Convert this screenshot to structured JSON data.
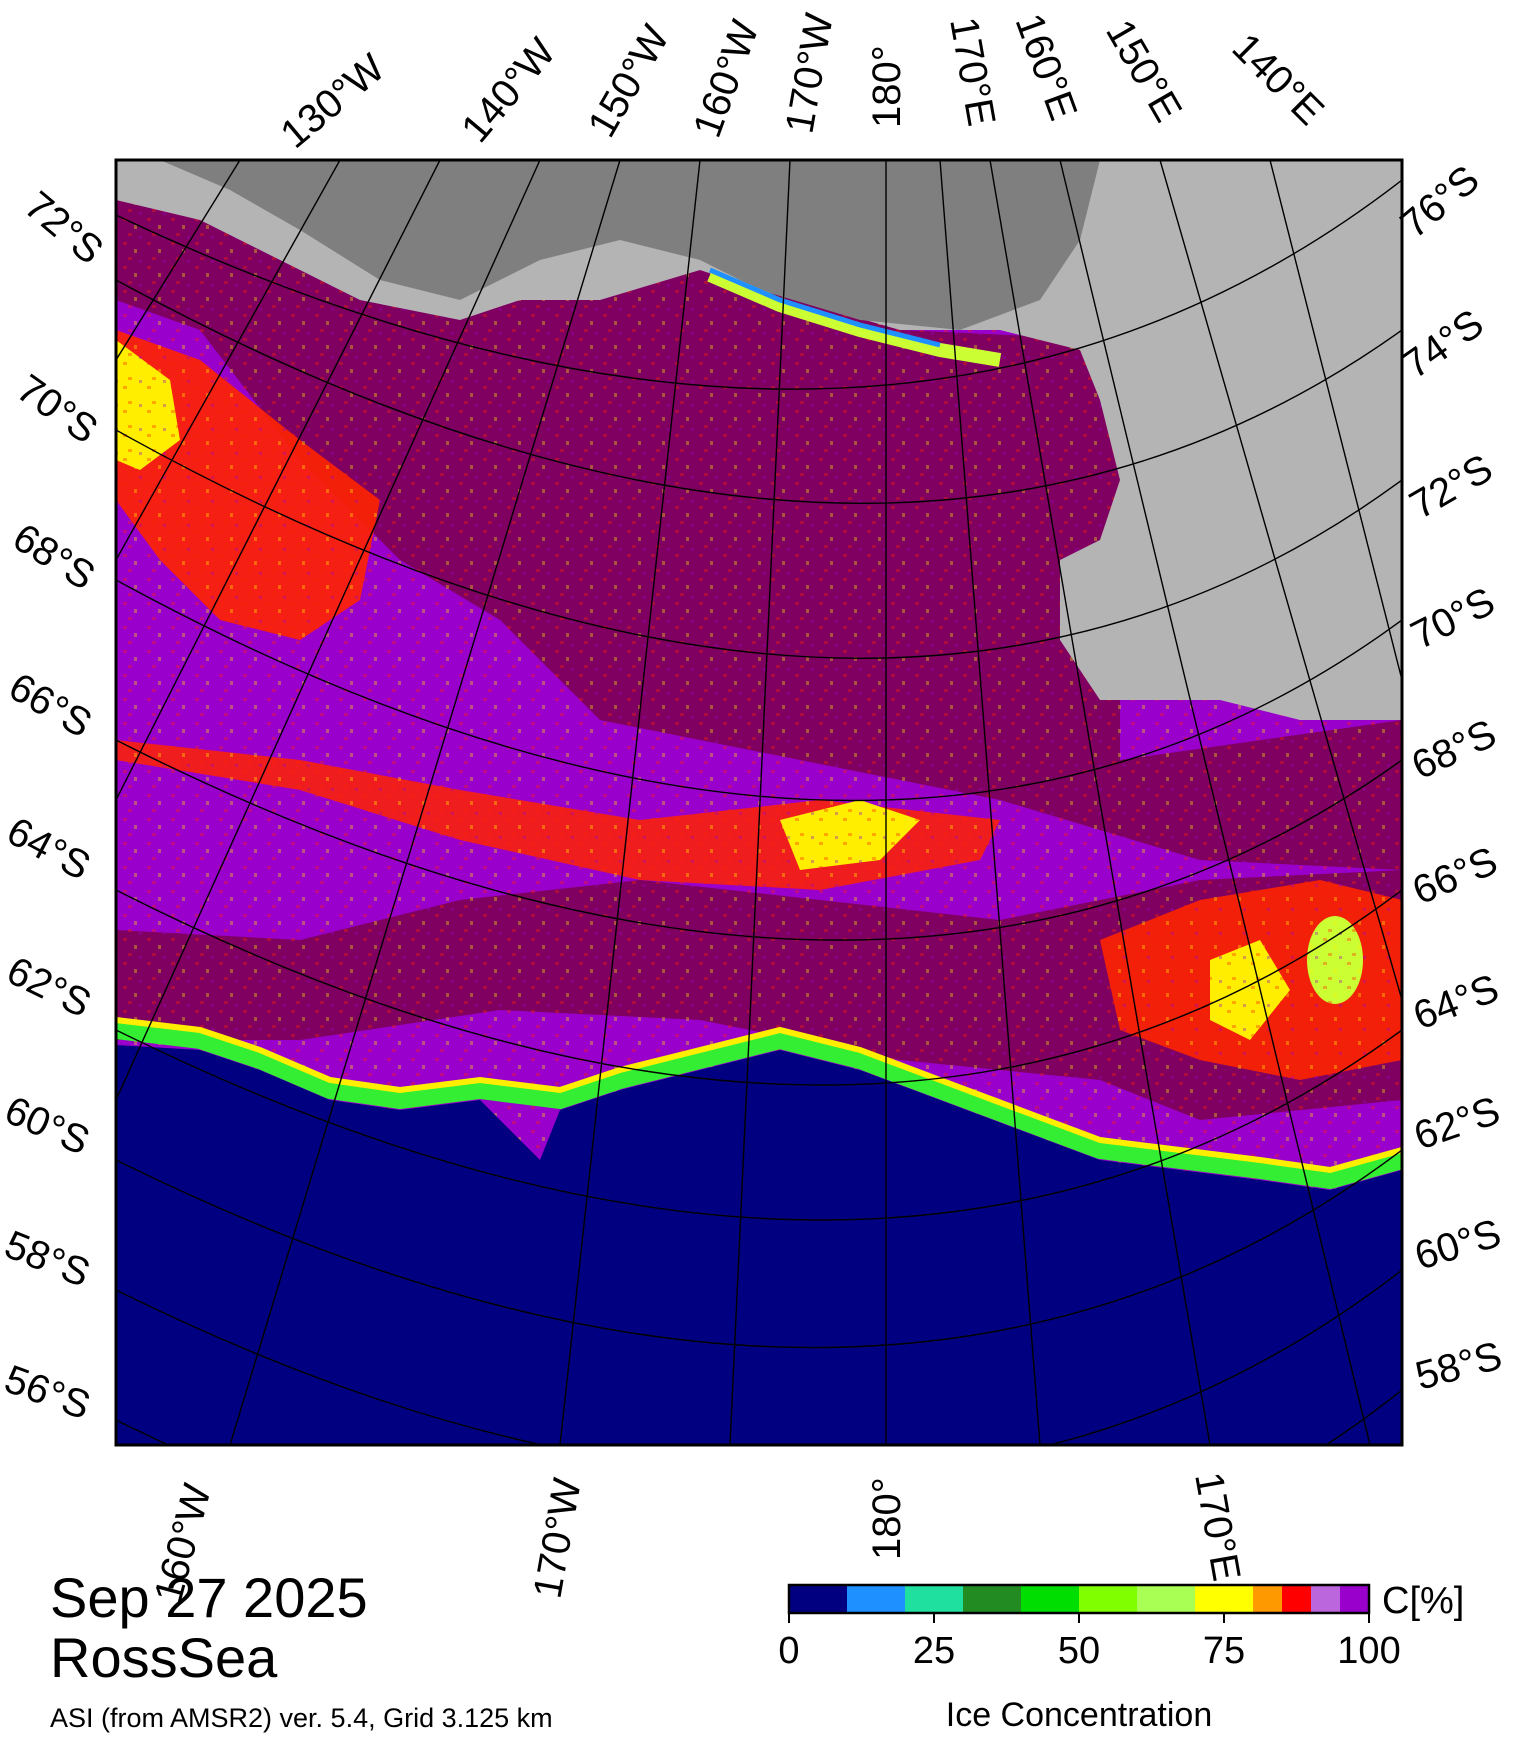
{
  "date": "Sep 27 2025",
  "region": "RossSea",
  "footer": "ASI (from AMSR2) ver. 5.4,  Grid 3.125 km",
  "colors": {
    "ocean": "#000080",
    "land_high": "#b4b4b4",
    "land_low": "#7f7f7f",
    "ice_dense": "#7f0060",
    "ice_purple": "#9900cc"
  },
  "top_lon_labels": [
    "130°W",
    "140°W",
    "150°W",
    "160°W",
    "170°W",
    "180°",
    "170°E",
    "160°E",
    "150°E",
    "140°E"
  ],
  "bottom_lon_labels": [
    "160°W",
    "170°W",
    "180°",
    "170°E"
  ],
  "left_lat_labels": [
    "72°S",
    "70°S",
    "68°S",
    "66°S",
    "64°S",
    "62°S",
    "60°S",
    "58°S",
    "56°S"
  ],
  "right_lat_labels": [
    "76°S",
    "74°S",
    "72°S",
    "70°S",
    "68°S",
    "66°S",
    "64°S",
    "62°S",
    "60°S",
    "58°S"
  ],
  "colorbar": {
    "title": "Ice Concentration",
    "unit": "C[%]",
    "ticks": [
      "0",
      "25",
      "50",
      "75",
      "100"
    ],
    "colors": [
      "#000080",
      "#1e90ff",
      "#20e0a0",
      "#228b22",
      "#00dd00",
      "#7fff00",
      "#aaff55",
      "#ffff00",
      "#ff9900",
      "#ff0000",
      "#bb66dd",
      "#9900cc"
    ]
  }
}
